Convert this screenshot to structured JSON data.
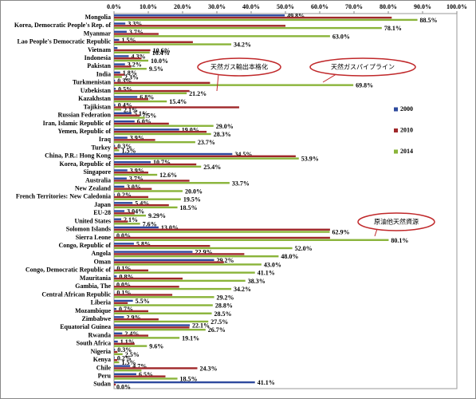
{
  "chart_data": {
    "type": "hbar",
    "categories": [
      "Mongolia",
      "Korea, Democratic People's Rep. of",
      "Myanmar",
      "Lao People's Democratic Republic",
      "Vietnam",
      "Indonesia",
      "Pakistan",
      "India",
      "Turkmenistan",
      "Uzbekistan",
      "Kazakhstan",
      "Tajikistan",
      "Russian Federation",
      "Iran, Islamic Republic of",
      "Yemen, Republic of",
      "Iraq",
      "Turkey",
      "China, P.R.: Hong Kong",
      "Korea, Republic of",
      "Singapore",
      "Australia",
      "New Zealand",
      "French Territories: New Caledonia",
      "Japan",
      "EU-28",
      "United States",
      "Solomon Islands",
      "Sierra Leone",
      "Congo, Republic of",
      "Angola",
      "Oman",
      "Congo, Democratic Republic of",
      "Mauritania",
      "Gambia, The",
      "Central African Republic",
      "Liberia",
      "Mozambique",
      "Zimbabwe",
      "Equatorial Guinea",
      "Rwanda",
      "South Africa",
      "Nigeria",
      "Kenya",
      "Chile",
      "Peru",
      "Sudan"
    ],
    "series": [
      {
        "name": "2000",
        "color": "#2e4a9e",
        "values": [
          49.8,
          3.3,
          3.7,
          1.5,
          1.0,
          4.3,
          3.2,
          1.8,
          0.3,
          0.5,
          6.8,
          0.4,
          5.1,
          6.0,
          19.0,
          3.9,
          0.3,
          34.5,
          10.7,
          3.9,
          3.7,
          3.0,
          0.2,
          5.4,
          3.04,
          2.1,
          13.0,
          0.0,
          5.8,
          22.9,
          29.2,
          0.1,
          0.8,
          0.0,
          0.1,
          5.5,
          0.7,
          2.9,
          22.1,
          2.4,
          1.1,
          0.3,
          0.2,
          4.7,
          6.5,
          41.1
        ],
        "value_labels": [
          "49.8%",
          "3.3%",
          "3.7%",
          "1.5%",
          null,
          "4.3%",
          "3.2%",
          "1.8%",
          "0.3%",
          "0.5%",
          "6.8%",
          "0.4%",
          "5.1%",
          "6.0%",
          "19.0%",
          "3.9%",
          "0.3%",
          "34.5%",
          "10.7%",
          "3.9%",
          "3.7%",
          "3.0%",
          "0.2%",
          "5.4%",
          "3.04%",
          "2.1%",
          "13.0%",
          "0.0%",
          "5.8%",
          "22.9%",
          "29.2%",
          "0.1%",
          "0.8%",
          "0.0%",
          "0.1%",
          "5.5%",
          "0.7%",
          "2.9%",
          "22.1%",
          "2.4%",
          "1.1%",
          "0.3%",
          "0.2%",
          "4.7%",
          "6.5%",
          "41.1%"
        ]
      },
      {
        "name": "2010",
        "color": "#a0282a",
        "values": [
          81,
          50,
          13,
          23,
          10.6,
          8,
          5,
          3,
          28,
          22,
          10,
          36.5,
          7.5,
          16,
          27,
          12,
          1,
          53,
          24,
          10,
          22,
          11,
          10,
          16,
          6,
          4,
          63,
          63,
          28,
          38,
          32,
          10,
          20,
          19,
          17,
          4,
          10,
          13,
          22,
          10,
          6,
          1,
          1,
          24.3,
          15,
          0.5
        ],
        "value_labels": [
          null,
          null,
          null,
          null,
          "10.6%",
          null,
          null,
          null,
          null,
          null,
          null,
          null,
          "7.5%",
          null,
          null,
          null,
          null,
          null,
          null,
          null,
          null,
          null,
          null,
          null,
          null,
          null,
          null,
          null,
          null,
          null,
          null,
          null,
          null,
          null,
          null,
          null,
          null,
          null,
          null,
          null,
          null,
          null,
          null,
          "24.3%",
          null,
          null
        ]
      },
      {
        "name": "2014",
        "color": "#8ab43a",
        "values": [
          88.5,
          78.1,
          63.0,
          34.2,
          10.4,
          10.0,
          9.5,
          2.3,
          69.8,
          21.2,
          15.4,
          2.1,
          9,
          29.0,
          28.3,
          23.7,
          1.5,
          53.9,
          25.4,
          12.6,
          33.7,
          20.0,
          19.5,
          18.5,
          9.29,
          7.6,
          62.9,
          80.1,
          52.0,
          48.0,
          43.0,
          41.1,
          38.3,
          34.2,
          29.2,
          28.8,
          28.5,
          27.5,
          26.7,
          19.1,
          9.6,
          2.5,
          1.5,
          8,
          18.5,
          0.0
        ],
        "value_labels": [
          "88.5%",
          "78.1%",
          "63.0%",
          "34.2%",
          "10.4%",
          "10.0%",
          "9.5%",
          "2.3%",
          "69.8%",
          "21.2%",
          "15.4%",
          "2.1%",
          null,
          "29.0%",
          "28.3%",
          "23.7%",
          "1.5%",
          "53.9%",
          "25.4%",
          "12.6%",
          "33.7%",
          "20.0%",
          "19.5%",
          "18.5%",
          "9.29%",
          "7.6%",
          "62.9%",
          "80.1%",
          "52.0%",
          "48.0%",
          "43.0%",
          "41.1%",
          "38.3%",
          "34.2%",
          "29.2%",
          "28.8%",
          "28.5%",
          "27.5%",
          "26.7%",
          "19.1%",
          "9.6%",
          "2.5%",
          "1.5%",
          null,
          "18.5%",
          "0.0%"
        ]
      }
    ],
    "xlim": [
      0,
      100
    ],
    "xticks": [
      {
        "value": 0,
        "label": "0.0%"
      },
      {
        "value": 10,
        "label": "10.0%"
      },
      {
        "value": 20,
        "label": "20.0%"
      },
      {
        "value": 30,
        "label": "30.0%"
      },
      {
        "value": 40,
        "label": "40.0%"
      },
      {
        "value": 50,
        "label": "50.0%"
      },
      {
        "value": 60,
        "label": "60.0%"
      },
      {
        "value": 70,
        "label": "70.0%"
      },
      {
        "value": 80,
        "label": "80.0%"
      },
      {
        "value": 90,
        "label": "90.0%"
      },
      {
        "value": 100,
        "label": "100.0%"
      }
    ],
    "grid": false,
    "legend": "right",
    "annotations": [
      "天然ガス輸出本格化",
      "天然ガスパイプライン",
      "原油他天然資源"
    ]
  }
}
